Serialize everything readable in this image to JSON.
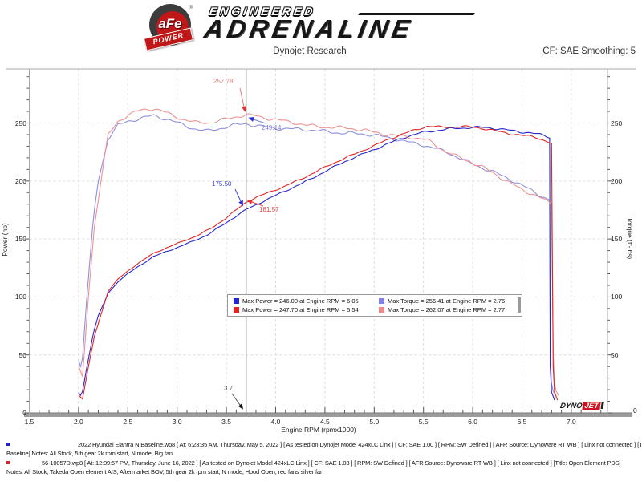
{
  "header": {
    "title": "Dynojet Research",
    "cf_label": "CF: SAE Smoothing: 5",
    "logo": {
      "badge": "aFe",
      "badge_reg": "®",
      "banner": "POWER",
      "top": "ENGINEERED",
      "main": "ADRENALINE"
    }
  },
  "chart_data": {
    "type": "line",
    "title": "Dynojet Research",
    "xlabel": "Engine RPM (rpmx1000)",
    "ylabel_left": "Power (hp)",
    "ylabel_right": "Torque (ft-lbs)",
    "xlim": [
      1.5,
      7.37
    ],
    "ylim": [
      0,
      295
    ],
    "x_ticks": [
      1.5,
      2.0,
      2.5,
      3.0,
      3.5,
      4.0,
      4.5,
      5.0,
      5.5,
      6.0,
      6.5,
      7.0
    ],
    "y_ticks": [
      0,
      50,
      100,
      150,
      200,
      250
    ],
    "grid": true,
    "legend_position": "inside-center-lower",
    "cursor_rpm": 3.7,
    "cursor_values": {
      "torque_modified": 257.78,
      "torque_baseline": 249.14,
      "power_baseline": 175.5,
      "power_modified": 181.57
    },
    "power_derivation": "hp = torque x rpm / 5252",
    "runs": [
      {
        "name": "baseline",
        "power_color": "#2626cf",
        "torque_color": "#8f8fe0",
        "drop_rpm": 6.78,
        "phase": 0.4,
        "max_power": {
          "value": 246.0,
          "rpm": 6.05
        },
        "max_torque": {
          "value": 256.41,
          "rpm": 2.76
        },
        "torque_points": [
          [
            2.0,
            46
          ],
          [
            2.03,
            36
          ],
          [
            2.08,
            95
          ],
          [
            2.15,
            168
          ],
          [
            2.2,
            200
          ],
          [
            2.3,
            236
          ],
          [
            2.4,
            248
          ],
          [
            2.5,
            252
          ],
          [
            2.6,
            254
          ],
          [
            2.7,
            255.5
          ],
          [
            2.76,
            256.41
          ],
          [
            2.85,
            254
          ],
          [
            3.0,
            250
          ],
          [
            3.15,
            246
          ],
          [
            3.3,
            243.5
          ],
          [
            3.45,
            245.5
          ],
          [
            3.6,
            248
          ],
          [
            3.7,
            249.14
          ],
          [
            3.85,
            247.5
          ],
          [
            4.0,
            246
          ],
          [
            4.25,
            244
          ],
          [
            4.5,
            243
          ],
          [
            4.75,
            241.5
          ],
          [
            5.0,
            239
          ],
          [
            5.25,
            236
          ],
          [
            5.5,
            231
          ],
          [
            5.75,
            224
          ],
          [
            6.05,
            213.5
          ],
          [
            6.2,
            208
          ],
          [
            6.4,
            200
          ],
          [
            6.6,
            192
          ],
          [
            6.78,
            184
          ]
        ]
      },
      {
        "name": "modified",
        "power_color": "#e02525",
        "torque_color": "#ef9292",
        "drop_rpm": 6.81,
        "phase": 2.9,
        "max_power": {
          "value": 247.7,
          "rpm": 5.54
        },
        "max_torque": {
          "value": 262.07,
          "rpm": 2.77
        },
        "torque_points": [
          [
            2.0,
            40
          ],
          [
            2.04,
            31
          ],
          [
            2.1,
            100
          ],
          [
            2.16,
            160
          ],
          [
            2.22,
            196
          ],
          [
            2.3,
            240
          ],
          [
            2.4,
            252
          ],
          [
            2.5,
            257
          ],
          [
            2.6,
            260
          ],
          [
            2.7,
            261.5
          ],
          [
            2.77,
            262.07
          ],
          [
            2.9,
            258.5
          ],
          [
            3.05,
            254
          ],
          [
            3.2,
            250.5
          ],
          [
            3.35,
            250
          ],
          [
            3.5,
            253
          ],
          [
            3.6,
            255.5
          ],
          [
            3.7,
            257.78
          ],
          [
            3.8,
            256.5
          ],
          [
            3.95,
            253.5
          ],
          [
            4.1,
            251
          ],
          [
            4.3,
            248.5
          ],
          [
            4.5,
            247
          ],
          [
            4.7,
            245.5
          ],
          [
            4.9,
            243.5
          ],
          [
            5.1,
            241
          ],
          [
            5.3,
            238.5
          ],
          [
            5.54,
            234.8
          ],
          [
            5.7,
            227
          ],
          [
            5.9,
            219.5
          ],
          [
            6.1,
            211.5
          ],
          [
            6.3,
            202
          ],
          [
            6.5,
            193
          ],
          [
            6.65,
            187.5
          ],
          [
            6.81,
            179
          ]
        ]
      }
    ],
    "legend": {
      "entries": [
        {
          "swatch": "#2626cf",
          "text": "Max Power = 246.00 at Engine RPM = 6.05"
        },
        {
          "swatch": "#8080e8",
          "text": "Max Torque = 256.41 at Engine RPM = 2.76"
        },
        {
          "swatch": "#e02525",
          "text": "Max Power = 247.70 at Engine RPM = 5.54"
        },
        {
          "swatch": "#f08a8a",
          "text": "Max Torque = 262.07 at Engine RPM = 2.77"
        }
      ]
    },
    "annotations": [
      {
        "text": "257.78",
        "text_color": "#e87b7b",
        "arrow_color": "#e53030",
        "label": [
          266,
          97
        ],
        "line": [
          299,
          110,
          304,
          133
        ]
      },
      {
        "text": "249.14",
        "text_color": "#7d7dde",
        "arrow_color": "#2a2ad8",
        "label": [
          326,
          155
        ],
        "line": [
          331,
          154,
          316,
          149
        ]
      },
      {
        "text": "175.50",
        "text_color": "#4646cf",
        "arrow_color": "#2a2ad8",
        "label": [
          264,
          225
        ],
        "line": [
          293,
          236,
          300,
          251
        ]
      },
      {
        "text": "181.57",
        "text_color": "#e04040",
        "arrow_color": "#e53030",
        "label": [
          323,
          257
        ],
        "line": [
          328,
          257,
          314,
          252
        ]
      },
      {
        "text": "3.7",
        "text_color": "#555555",
        "arrow_color": "#161616",
        "label": [
          279,
          480
        ],
        "line": [
          289,
          491,
          299,
          505
        ]
      }
    ]
  },
  "dynojet_logo": {
    "part1": "DYNO",
    "part2": "JET"
  },
  "footer": {
    "blocks": [
      {
        "bullet_color": "#2222cc",
        "line1": "2022 Hyundai Elantra N Baseline.wp8 [ At: 6:23:35 AM, Thursday, May 5, 2022 ] [ As tested on Dynojet Model 424xLC Linx ] [ CF: SAE 1.00 ] [ RPM: SW Defined ] [ AFR Source: Dynoware RT WB ] [ Linx not connected ] [Title:",
        "line2": "Baseline]  Notes: All Stock, 5th gear 2k rpm start, N mode, Big fan"
      },
      {
        "bullet_color": "#dd2222",
        "line1": "56-10057D.wp8 [ At: 12:09:57 PM, Thursday, June 16, 2022 ] [ As tested on Dynojet Model 424xLC Linx ] [ CF: SAE 1.03 ] [ RPM: SW Defined ] [ AFR Source: Dynoware RT WB ] [ Linx not connected ] [Title: Open Element PDS]",
        "line2": "Notes: All Stock, Takeda Open element AIS, Aftermarket BOV, 5th gear 2k rpm start, N mode, Hood Open, red fans silver fan"
      }
    ]
  }
}
